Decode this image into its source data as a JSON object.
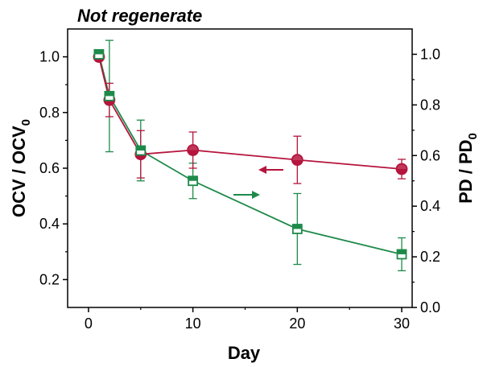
{
  "chart_data": {
    "type": "line",
    "title": "Not regenerate",
    "xlabel": "Day",
    "ylabel_left": "OCV / OCV",
    "ylabel_left_subscript": "0",
    "ylabel_right": "PD / PD",
    "ylabel_right_subscript": "0",
    "xlim": [
      -2,
      31
    ],
    "ylim_left": [
      0.1,
      1.1
    ],
    "ylim_right": [
      0.0,
      1.1
    ],
    "x_ticks": [
      0,
      10,
      20,
      30
    ],
    "y_left_ticks": [
      "0.2",
      "0.4",
      "0.6",
      "0.8",
      "1.0"
    ],
    "y_right_ticks": [
      "0.0",
      "0.2",
      "0.4",
      "0.6",
      "0.8",
      "1.0"
    ],
    "series": [
      {
        "axis": "left",
        "color": "#b5143c",
        "marker": "circle",
        "x": [
          1,
          2,
          5,
          10,
          20,
          30
        ],
        "y": [
          1.0,
          0.845,
          0.65,
          0.665,
          0.63,
          0.597
        ],
        "err": [
          0.0,
          0.06,
          0.085,
          0.065,
          0.085,
          0.035
        ]
      },
      {
        "axis": "right",
        "color": "#1e8a4a",
        "marker": "square",
        "x": [
          1,
          2,
          5,
          10,
          20,
          30
        ],
        "y": [
          1.0,
          0.835,
          0.62,
          0.5,
          0.31,
          0.21
        ],
        "err": [
          0.0,
          0.22,
          0.12,
          0.07,
          0.14,
          0.065
        ]
      }
    ],
    "arrow_red_direction": "left",
    "arrow_green_direction": "right"
  }
}
